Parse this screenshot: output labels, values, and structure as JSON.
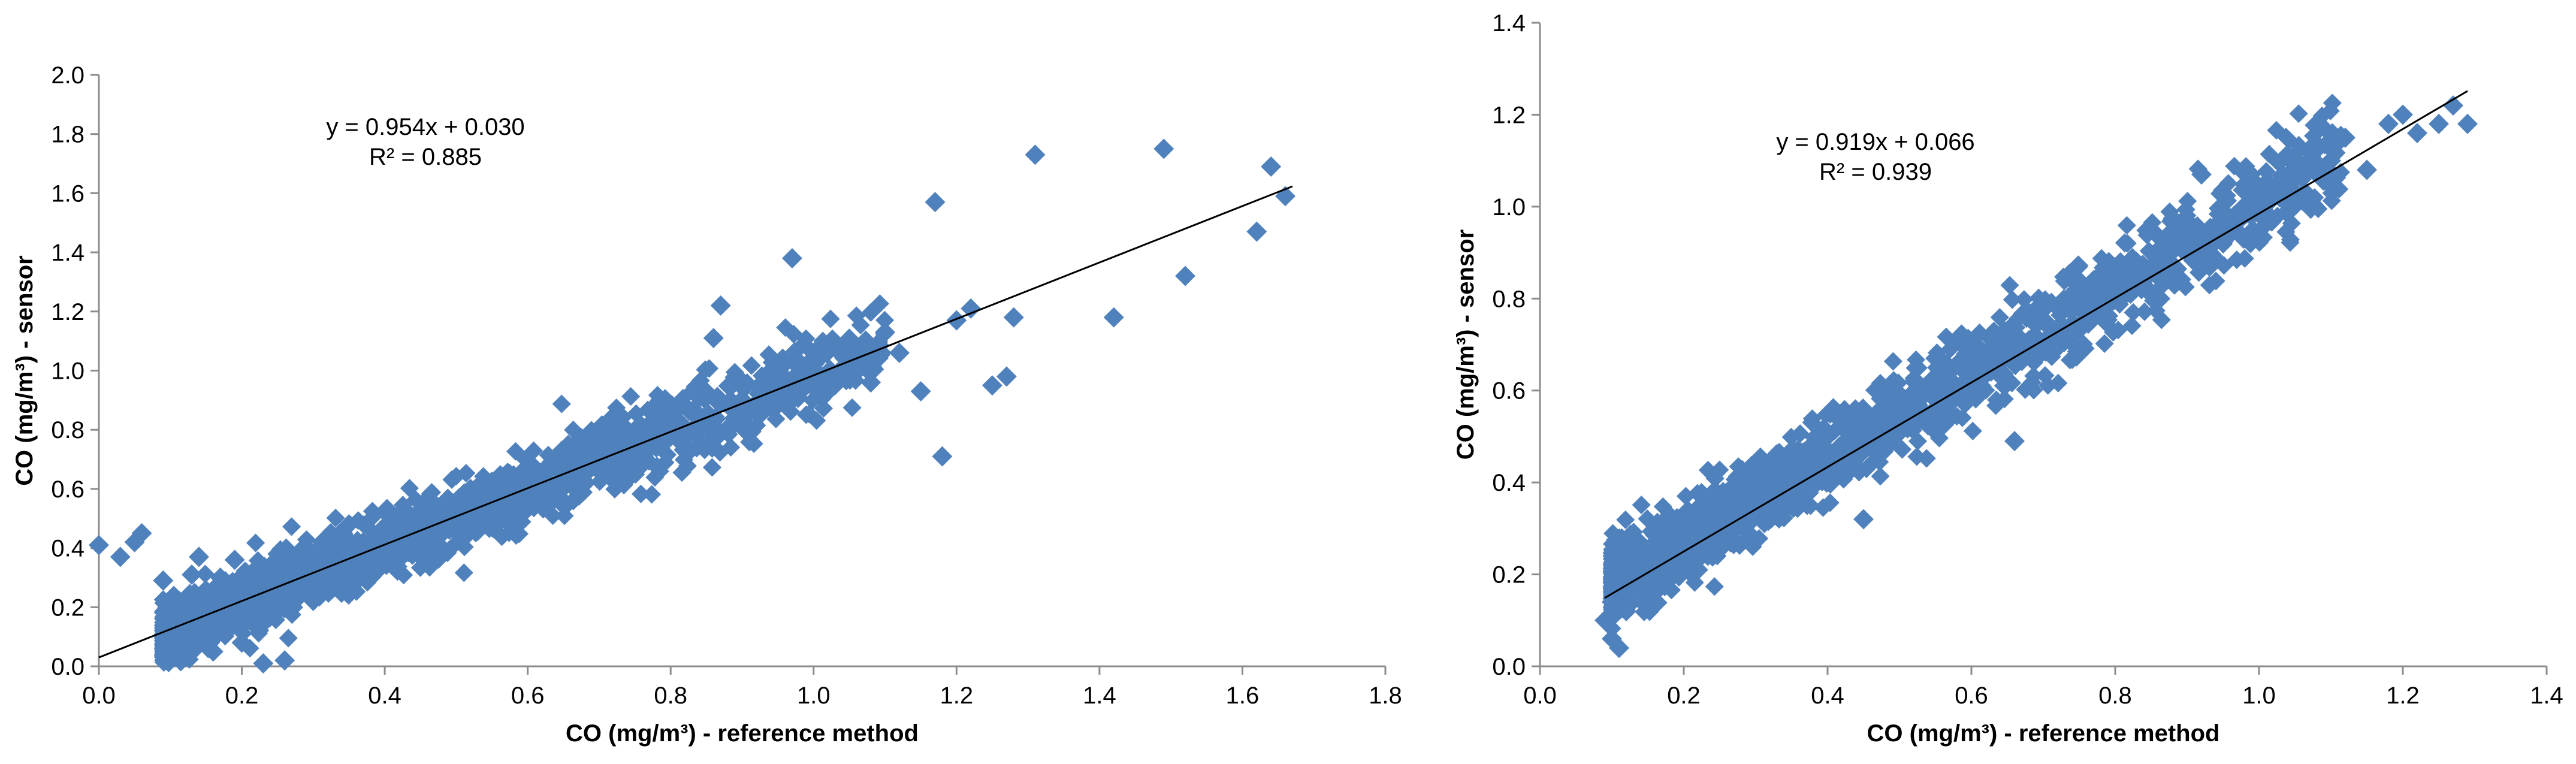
{
  "chart_data": [
    {
      "type": "scatter",
      "xlabel": "CO (mg/m³)  - reference method",
      "ylabel": "CO (mg/m³)  - sensor",
      "xlim": [
        0,
        1.8
      ],
      "ylim": [
        0,
        2.0
      ],
      "xticks": [
        "0.0",
        "0.2",
        "0.4",
        "0.6",
        "0.8",
        "1.0",
        "1.2",
        "1.4",
        "1.6",
        "1.8"
      ],
      "yticks": [
        "0.0",
        "0.2",
        "0.4",
        "0.6",
        "0.8",
        "1.0",
        "1.2",
        "1.4",
        "1.6",
        "1.8",
        "2.0"
      ],
      "grid": false,
      "marker_color": "#4F81BD",
      "trendline": {
        "slope": 0.954,
        "intercept": 0.03,
        "x_range": [
          0.0,
          1.67
        ]
      },
      "annotations": [
        "y = 0.954x + 0.030",
        "R² = 0.885"
      ],
      "series": [
        {
          "x": [
            0.0,
            0.03,
            0.05,
            0.06,
            0.09,
            0.1,
            0.11,
            0.12,
            0.13,
            0.13,
            0.14,
            0.15,
            0.16,
            0.17,
            0.18,
            0.19,
            0.2,
            0.21,
            0.22,
            0.23,
            0.24,
            0.25,
            0.25,
            0.26,
            0.27,
            0.28,
            0.29,
            0.3,
            0.32,
            0.34,
            0.35,
            0.37,
            0.4,
            0.42,
            0.45,
            0.48,
            0.5,
            0.52,
            0.55,
            0.58,
            0.6,
            0.62,
            0.65,
            0.68,
            0.7,
            0.72,
            0.75,
            0.78,
            0.8,
            0.83,
            0.86,
            0.87,
            0.9,
            0.92,
            0.95,
            0.97,
            1.0,
            1.03,
            1.05,
            1.08,
            1.1,
            1.12,
            1.15,
            1.17,
            1.18,
            1.2,
            1.22,
            1.25,
            1.27,
            1.28,
            1.31,
            1.42,
            1.49,
            1.52,
            1.62,
            1.64,
            1.66
          ],
          "y": [
            0.41,
            0.37,
            0.42,
            0.45,
            0.29,
            0.16,
            0.1,
            0.21,
            0.05,
            0.31,
            0.37,
            0.2,
            0.05,
            0.3,
            0.25,
            0.36,
            0.08,
            0.27,
            0.33,
            0.01,
            0.23,
            0.26,
            0.38,
            0.02,
            0.3,
            0.24,
            0.4,
            0.32,
            0.37,
            0.35,
            0.48,
            0.42,
            0.46,
            0.44,
            0.52,
            0.54,
            0.55,
            0.6,
            0.58,
            0.6,
            0.64,
            0.62,
            0.7,
            0.68,
            0.66,
            0.72,
            0.76,
            0.74,
            0.78,
            0.8,
            1.11,
            1.22,
            0.86,
            0.88,
            0.92,
            1.38,
            1.02,
            0.98,
            1.0,
            0.96,
            1.13,
            1.06,
            0.93,
            1.57,
            0.71,
            1.17,
            1.21,
            0.95,
            0.98,
            1.18,
            1.73,
            1.18,
            1.75,
            1.32,
            1.47,
            1.69,
            1.59
          ]
        }
      ]
    },
    {
      "type": "scatter",
      "xlabel": "CO (mg/m³)  - reference method",
      "ylabel": "CO (mg/m³)  - sensor",
      "xlim": [
        0,
        1.4
      ],
      "ylim": [
        0,
        1.4
      ],
      "xticks": [
        "0.0",
        "0.2",
        "0.4",
        "0.6",
        "0.8",
        "1.0",
        "1.2",
        "1.4"
      ],
      "yticks": [
        "0.0",
        "0.2",
        "0.4",
        "0.6",
        "0.8",
        "1.0",
        "1.2",
        "1.4"
      ],
      "grid": false,
      "marker_color": "#4F81BD",
      "trendline": {
        "slope": 0.919,
        "intercept": 0.066,
        "x_range": [
          0.09,
          1.29
        ]
      },
      "annotations": [
        "y = 0.919x + 0.066",
        "R² = 0.939"
      ],
      "series": [
        {
          "x": [
            0.09,
            0.1,
            0.1,
            0.11,
            0.11,
            0.12,
            0.13,
            0.14,
            0.15,
            0.16,
            0.18,
            0.2,
            0.22,
            0.24,
            0.26,
            0.28,
            0.3,
            0.32,
            0.34,
            0.36,
            0.38,
            0.4,
            0.42,
            0.44,
            0.45,
            0.47,
            0.5,
            0.52,
            0.55,
            0.57,
            0.6,
            0.62,
            0.65,
            0.66,
            0.7,
            0.72,
            0.75,
            0.77,
            0.8,
            0.82,
            0.85,
            0.87,
            0.9,
            0.92,
            0.95,
            0.97,
            1.0,
            1.02,
            1.05,
            1.07,
            1.1,
            1.12,
            1.15,
            1.18,
            1.2,
            1.22,
            1.25,
            1.27,
            1.29
          ],
          "y": [
            0.1,
            0.06,
            0.14,
            0.04,
            0.2,
            0.12,
            0.24,
            0.16,
            0.22,
            0.26,
            0.27,
            0.25,
            0.32,
            0.3,
            0.36,
            0.33,
            0.4,
            0.38,
            0.44,
            0.42,
            0.47,
            0.5,
            0.52,
            0.55,
            0.32,
            0.6,
            0.58,
            0.62,
            0.67,
            0.64,
            0.7,
            0.68,
            0.73,
            0.49,
            0.75,
            0.78,
            0.8,
            0.84,
            0.82,
            0.88,
            0.86,
            0.92,
            0.94,
            1.07,
            0.96,
            0.98,
            1.0,
            1.04,
            1.06,
            1.12,
            1.1,
            1.15,
            1.08,
            1.18,
            1.2,
            1.16,
            1.18,
            1.22,
            1.18
          ]
        }
      ]
    }
  ]
}
